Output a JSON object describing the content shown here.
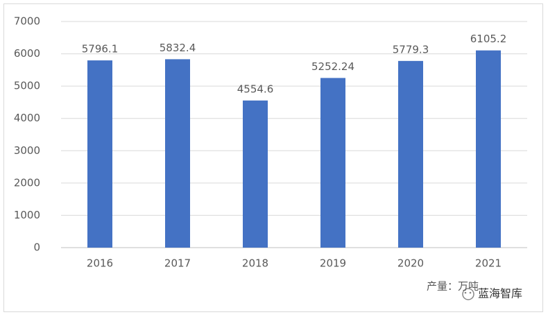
{
  "chart_data": {
    "type": "bar",
    "categories": [
      "2016",
      "2017",
      "2018",
      "2019",
      "2020",
      "2021"
    ],
    "series": [
      {
        "name": "产量：万吨",
        "color": "#4472c4",
        "values": [
          5796.1,
          5832.4,
          4554.6,
          5252.24,
          5779.3,
          6105.2
        ]
      }
    ],
    "ylim": [
      0,
      7000
    ],
    "yticks": [
      0,
      1000,
      2000,
      3000,
      4000,
      5000,
      6000,
      7000
    ],
    "grid": true
  },
  "watermark": "蓝海智库"
}
